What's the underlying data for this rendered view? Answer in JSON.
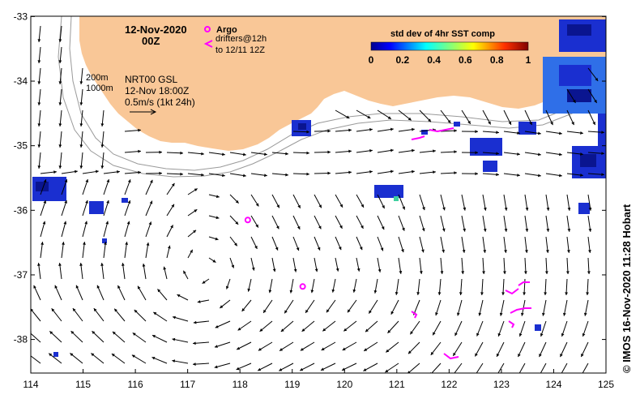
{
  "map": {
    "date_label": "12-Nov-2020",
    "time_label": "00Z",
    "contour_label_200": "200m",
    "contour_label_1000": "1000m",
    "product_line1": "NRT00 GSL",
    "product_line2": "12-Nov 18:00Z",
    "scale_label": "0.5m/s (1kt 24h)",
    "legend": {
      "argo_label": "Argo",
      "drifter_label_line1": "drifters@12h",
      "drifter_label_line2": "to 12/11 12Z"
    },
    "colorbar": {
      "title": "std dev of 4hr SST comp",
      "ticks": [
        "0",
        "0.2",
        "0.4",
        "0.6",
        "0.8",
        "1"
      ]
    },
    "x_ticks": [
      "114",
      "115",
      "116",
      "117",
      "118",
      "119",
      "120",
      "121",
      "122",
      "123",
      "124",
      "125"
    ],
    "y_ticks": [
      "-33",
      "-34",
      "-35",
      "-36",
      "-37",
      "-38"
    ],
    "credit": "© IMOS 16-Nov-2020 11:28 Hobart",
    "colors": {
      "land": "#f9c797",
      "argo": "#ff00ff",
      "drifters": "#ff00ff"
    },
    "argo_floats": [
      {
        "lon": 118.15,
        "lat": -36.15
      },
      {
        "lon": 119.2,
        "lat": -37.18
      }
    ]
  }
}
